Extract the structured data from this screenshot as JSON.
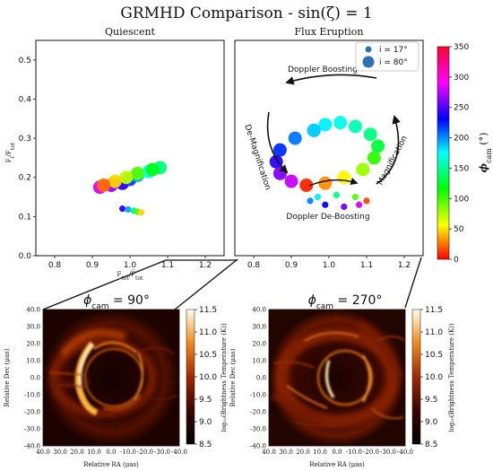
{
  "figure": {
    "title": "GRMHD Comparison - sin(ζ) = 1"
  },
  "chart_data": [
    {
      "type": "scatter",
      "title": "Quiescent",
      "xlabel": "F_tot / F̅_tot",
      "ylabel": "F_i / F_tot",
      "xlim": [
        0.75,
        1.25
      ],
      "ylim": [
        0.0,
        0.55
      ],
      "xticks": [
        "0.8",
        "0.9",
        "1.0",
        "1.1",
        "1.2"
      ],
      "yticks": [
        "0.0",
        "0.1",
        "0.2",
        "0.3",
        "0.4",
        "0.5"
      ],
      "series": [
        {
          "name": "i = 80°",
          "x": [
            0.92,
            0.95,
            0.98,
            1.0,
            1.02,
            1.05,
            1.08,
            1.06,
            1.02,
            0.99,
            0.96,
            0.93
          ],
          "y": [
            0.175,
            0.18,
            0.185,
            0.195,
            0.205,
            0.215,
            0.225,
            0.22,
            0.21,
            0.2,
            0.19,
            0.18
          ],
          "phi": [
            350,
            330,
            300,
            270,
            240,
            210,
            180,
            150,
            120,
            90,
            60,
            30
          ]
        },
        {
          "name": "i = 17°",
          "x": [
            0.98,
            0.995,
            1.01,
            1.02,
            1.03
          ],
          "y": [
            0.12,
            0.118,
            0.115,
            0.112,
            0.11
          ],
          "phi": [
            300,
            240,
            180,
            120,
            60
          ]
        }
      ]
    },
    {
      "type": "scatter",
      "title": "Flux Eruption",
      "xlabel": "",
      "ylabel": "",
      "xlim": [
        0.75,
        1.25
      ],
      "ylim": [
        0.0,
        0.55
      ],
      "xticks": [
        "0.8",
        "0.9",
        "1.0",
        "1.1",
        "1.2"
      ],
      "yticks": [],
      "legend": {
        "position": "top-right",
        "entries": [
          "i = 17°",
          "i = 80°"
        ]
      },
      "annotations": [
        "Doppler Boosting",
        "De-Magnification",
        "Magnification",
        "Doppler De-Boosting"
      ],
      "series": [
        {
          "name": "i = 80°",
          "x": [
            0.96,
            0.91,
            0.87,
            0.86,
            0.87,
            0.9,
            0.94,
            0.99,
            1.04,
            1.09,
            1.12,
            1.13,
            1.11,
            1.07,
            1.03,
            0.99,
            0.96
          ],
          "y": [
            0.32,
            0.3,
            0.27,
            0.24,
            0.21,
            0.19,
            0.18,
            0.185,
            0.2,
            0.22,
            0.25,
            0.28,
            0.31,
            0.33,
            0.34,
            0.335,
            0.32
          ],
          "phi": [
            230,
            255,
            275,
            300,
            325,
            345,
            10,
            40,
            70,
            100,
            130,
            160,
            180,
            195,
            210,
            220,
            230
          ]
        },
        {
          "name": "i = 17°",
          "x": [
            0.95,
            0.99,
            1.04,
            1.08,
            1.1,
            1.07,
            1.02,
            0.97
          ],
          "y": [
            0.14,
            0.13,
            0.125,
            0.13,
            0.14,
            0.15,
            0.155,
            0.15
          ],
          "phi": [
            250,
            290,
            320,
            350,
            20,
            120,
            180,
            220
          ]
        }
      ]
    },
    {
      "type": "heatmap",
      "title": "ϕ_cam = 90°",
      "xlabel": "Relative RA (μas)",
      "ylabel": "Relative Dec (μas)",
      "xticks": [
        "40.0",
        "30.0",
        "20.0",
        "10.0",
        "0.0",
        "-10.0",
        "-20.0",
        "-30.0",
        "-40.0"
      ],
      "yticks": [
        "40.0",
        "30.0",
        "20.0",
        "10.0",
        "0.0",
        "-10.0",
        "-20.0",
        "-30.0",
        "-40.0"
      ],
      "colorbar": {
        "label": "log₁₀(Brightness Temperature (K))",
        "ticks": [
          "11.5",
          "11.0",
          "10.5",
          "10.0",
          "9.5",
          "9.0",
          "8.5"
        ],
        "range": [
          8.5,
          11.5
        ]
      }
    },
    {
      "type": "heatmap",
      "title": "ϕ_cam = 270°",
      "xlabel": "Relative RA (μas)",
      "ylabel": "Relative Dec (μas)",
      "xticks": [
        "40.0",
        "30.0",
        "20.0",
        "10.0",
        "0.0",
        "-10.0",
        "-20.0",
        "-30.0",
        "-40.0"
      ],
      "yticks": [
        "40.0",
        "30.0",
        "20.0",
        "10.0",
        "0.0",
        "-10.0",
        "-20.0",
        "-30.0",
        "-40.0"
      ],
      "colorbar": {
        "label": "log₁₀(Brightness Temperature (K))",
        "ticks": [
          "11.5",
          "11.0",
          "10.5",
          "10.0",
          "9.5",
          "9.0",
          "8.5"
        ],
        "range": [
          8.5,
          11.5
        ]
      }
    }
  ],
  "phi_colorbar": {
    "label": "ϕ_cam (°)",
    "ticks": [
      "350",
      "300",
      "250",
      "200",
      "150",
      "100",
      "50",
      "0"
    ],
    "range": [
      0,
      350
    ]
  },
  "labels": {
    "cam90_prefix": "ϕ",
    "cam90_sub": "cam",
    "cam90_value": " = 90°",
    "cam270_prefix": "ϕ",
    "cam270_sub": "cam",
    "cam270_value": " = 270°",
    "xlabel_main": "F",
    "xlabel_sub1": "tot",
    "xlabel_bar": "/F̅",
    "xlabel_sub2": "tot",
    "ylabel_main": "F",
    "ylabel_sub1": "i",
    "ylabel_mid": "/F",
    "ylabel_sub2": "tot",
    "legend_i17": "i = 17°",
    "legend_i80": "i = 80°",
    "phi_label_main": "ϕ",
    "phi_label_sub": "cam",
    "phi_label_unit": " (°)"
  }
}
